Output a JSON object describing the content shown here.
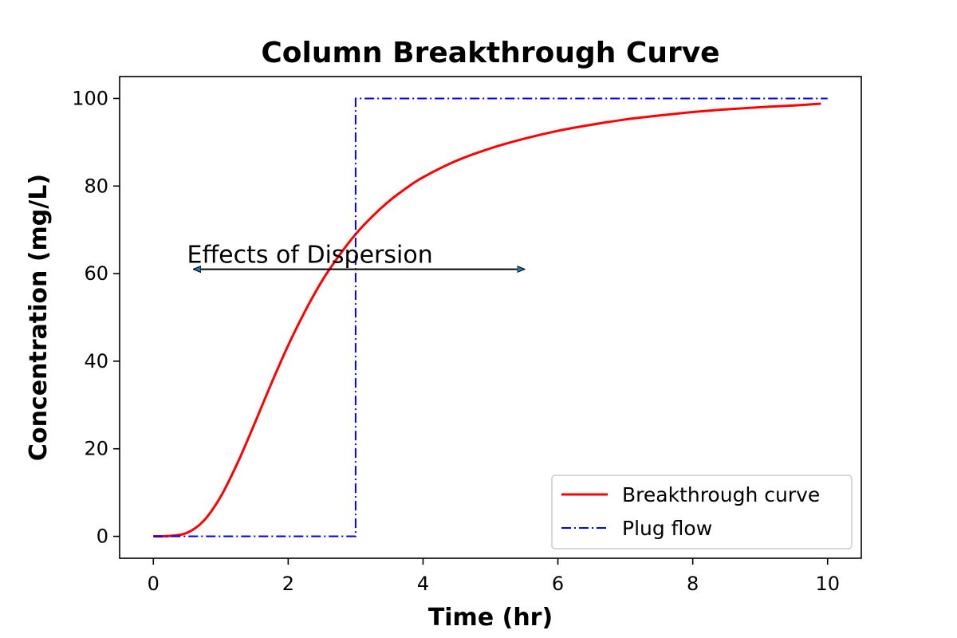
{
  "chart_data": {
    "type": "line",
    "title": "Column Breakthrough Curve",
    "xlabel": "Time (hr)",
    "ylabel": "Concentration (mg/L)",
    "xlim": [
      -0.5,
      10.5
    ],
    "ylim": [
      -5,
      105
    ],
    "xticks": [
      0,
      2,
      4,
      6,
      8,
      10
    ],
    "yticks": [
      0,
      20,
      40,
      60,
      80,
      100
    ],
    "grid": false,
    "legend_position": "lower-right",
    "series": [
      {
        "name": "Breakthrough curve",
        "color": "#ff0000",
        "style": "solid",
        "x": [
          0,
          0.25,
          0.5,
          0.75,
          1.0,
          1.25,
          1.5,
          1.75,
          2.0,
          2.25,
          2.5,
          2.75,
          3.0,
          3.25,
          3.5,
          3.75,
          4.0,
          4.5,
          5.0,
          5.5,
          6.0,
          6.5,
          7.0,
          7.5,
          8.0,
          8.5,
          9.0,
          9.5,
          9.9
        ],
        "y": [
          0,
          0.1,
          0.8,
          3.6,
          9.1,
          16.8,
          25.7,
          34.9,
          43.6,
          51.4,
          58.3,
          64.0,
          69.0,
          73.1,
          76.6,
          79.5,
          82.0,
          85.8,
          88.6,
          90.8,
          92.6,
          94.0,
          95.2,
          96.1,
          96.9,
          97.5,
          98.0,
          98.4,
          98.8
        ]
      },
      {
        "name": "Plug flow",
        "color": "#0000ff",
        "style": "dashdot",
        "x": [
          0,
          3,
          3,
          10
        ],
        "y": [
          0,
          0,
          100,
          100
        ]
      }
    ],
    "annotations": [
      {
        "text": "Effects of Dispersion",
        "text_position": [
          0.5,
          65
        ],
        "arrow": {
          "from": 0.6,
          "to": 5.5,
          "y": 61,
          "direction": "both"
        }
      }
    ]
  }
}
